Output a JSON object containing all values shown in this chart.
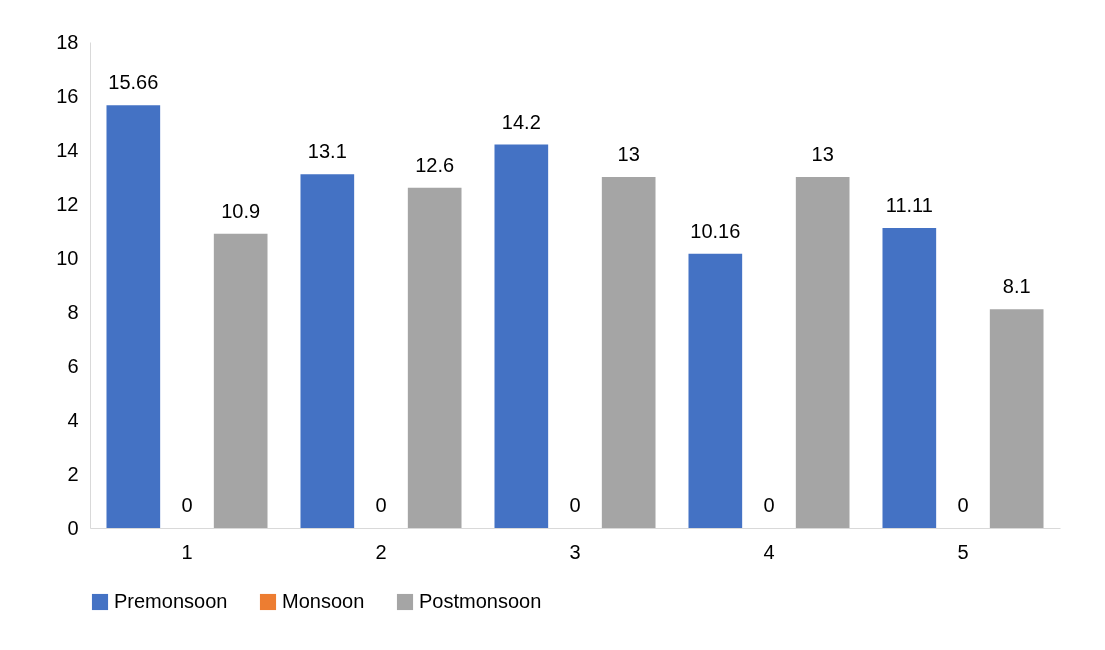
{
  "chart_data": {
    "type": "bar",
    "categories": [
      "1",
      "2",
      "3",
      "4",
      "5"
    ],
    "series": [
      {
        "name": "Premonsoon",
        "color": "#4472c4",
        "values": [
          15.66,
          13.1,
          14.2,
          10.16,
          11.11
        ]
      },
      {
        "name": "Monsoon",
        "color": "#ed7d31",
        "values": [
          0,
          0,
          0,
          0,
          0
        ]
      },
      {
        "name": "Postmonsoon",
        "color": "#a5a5a5",
        "values": [
          10.9,
          12.6,
          13,
          13,
          8.1
        ]
      }
    ],
    "ylim": [
      0,
      18
    ],
    "yticks": [
      0,
      2,
      4,
      6,
      8,
      10,
      12,
      14,
      16,
      18
    ],
    "grid": false,
    "legend": "bottom",
    "data_labels": true
  }
}
